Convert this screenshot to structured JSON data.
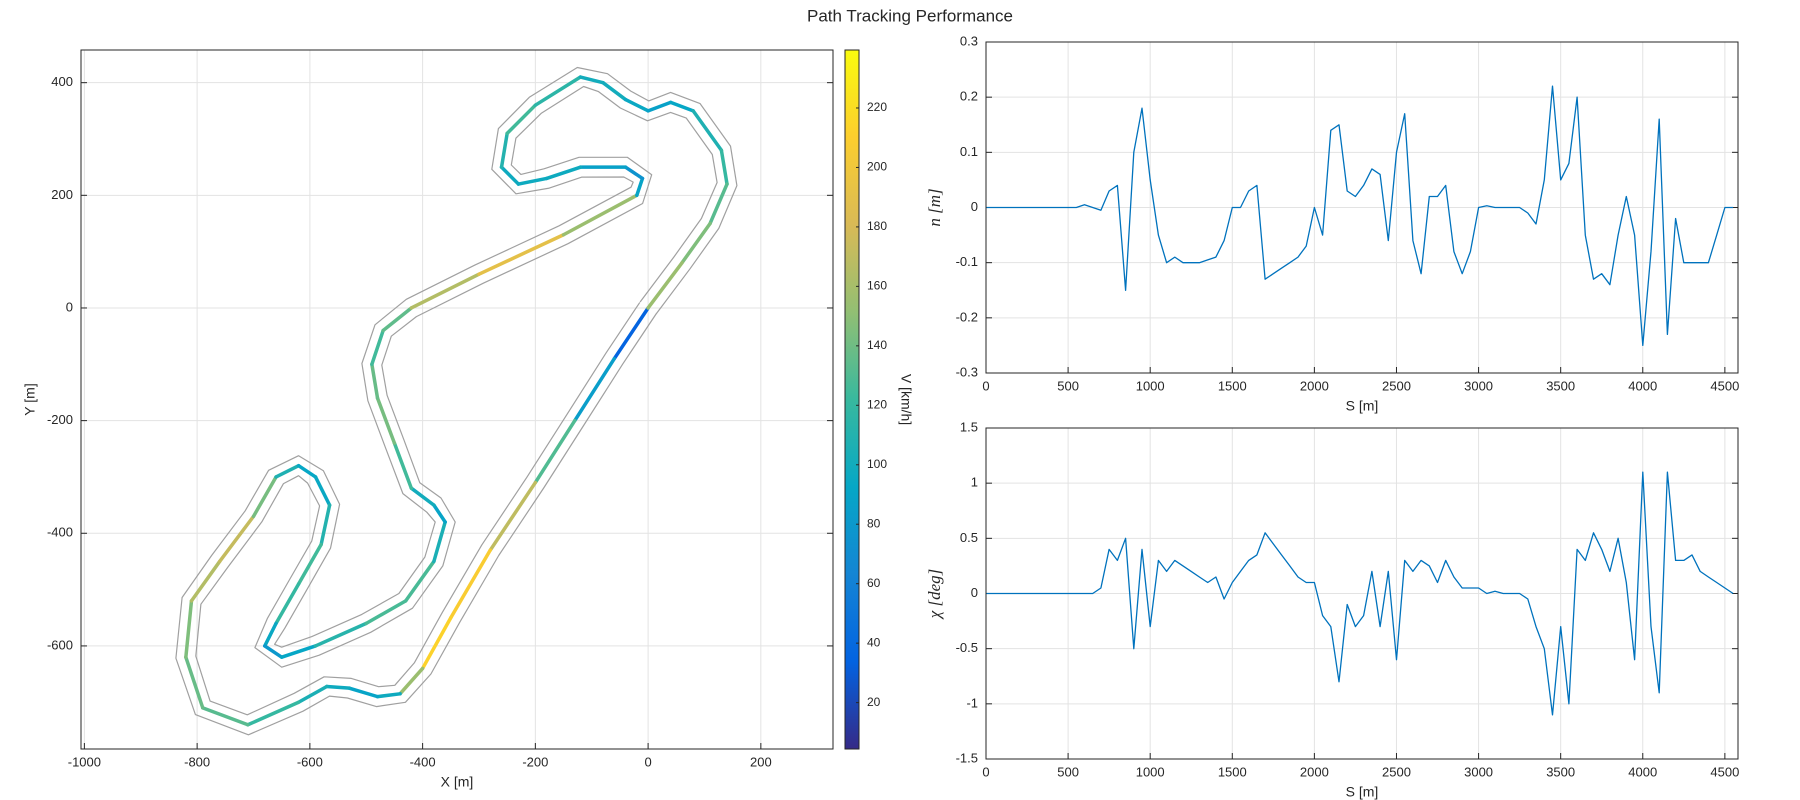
{
  "title": "Path Tracking Performance",
  "chart_data": [
    {
      "type": "track",
      "xlabel": "X [m]",
      "ylabel": "Y [m]",
      "xlim": [
        -1006,
        328
      ],
      "ylim": [
        -783,
        458
      ],
      "xticks": [
        -1000,
        -800,
        -600,
        -400,
        -200,
        0,
        200
      ],
      "yticks": [
        -600,
        -400,
        -200,
        0,
        200,
        400
      ],
      "grid": true,
      "x": [
        0,
        -60,
        -130,
        -200,
        -280,
        -350,
        -400,
        -440,
        -480,
        -530,
        -570,
        -620,
        -710,
        -790,
        -820,
        -810,
        -760,
        -700,
        -660,
        -620,
        -590,
        -565,
        -580,
        -620,
        -660,
        -680,
        -650,
        -590,
        -500,
        -430,
        -380,
        -360,
        -380,
        -420,
        -450,
        -480,
        -490,
        -470,
        -420,
        -300,
        -150,
        -20,
        -10,
        -40,
        -120,
        -180,
        -230,
        -260,
        -250,
        -200,
        -120,
        -80,
        -40,
        0,
        40,
        80,
        130,
        140,
        110,
        60,
        0
      ],
      "y": [
        0,
        -90,
        -200,
        -310,
        -430,
        -550,
        -640,
        -685,
        -690,
        -675,
        -672,
        -700,
        -740,
        -710,
        -620,
        -520,
        -450,
        -370,
        -300,
        -280,
        -300,
        -350,
        -420,
        -490,
        -560,
        -600,
        -620,
        -600,
        -560,
        -520,
        -450,
        -380,
        -350,
        -320,
        -240,
        -160,
        -100,
        -40,
        0,
        60,
        130,
        200,
        230,
        250,
        250,
        230,
        220,
        250,
        310,
        360,
        410,
        400,
        370,
        350,
        365,
        350,
        280,
        220,
        150,
        80,
        0
      ],
      "speed": [
        10,
        60,
        110,
        150,
        190,
        225,
        200,
        110,
        85,
        95,
        100,
        110,
        130,
        135,
        140,
        150,
        180,
        165,
        120,
        95,
        90,
        100,
        120,
        130,
        110,
        80,
        80,
        105,
        120,
        135,
        120,
        90,
        90,
        110,
        140,
        145,
        130,
        120,
        150,
        180,
        200,
        110,
        70,
        80,
        95,
        100,
        95,
        100,
        120,
        130,
        100,
        100,
        100,
        90,
        85,
        100,
        115,
        125,
        140,
        150,
        160
      ],
      "colorbar_label": "V [km/h]",
      "clim": [
        4.4,
        239.5
      ],
      "cticks": [
        20,
        40,
        60,
        80,
        100,
        120,
        140,
        160,
        180,
        200,
        220
      ],
      "colormap": [
        "#352a87",
        "#0363e1",
        "#1485d4",
        "#06a7c6",
        "#38b99e",
        "#92bf73",
        "#d9ba56",
        "#fcce2e",
        "#f9fb0e"
      ],
      "boundary_color": "#a0a0a0"
    },
    {
      "type": "line",
      "xlabel": "S [m]",
      "ylabel": "n [m]",
      "color": "#0072bd",
      "xlim": [
        0,
        4580
      ],
      "ylim": [
        -0.3,
        0.3
      ],
      "xticks": [
        0,
        500,
        1000,
        1500,
        2000,
        2500,
        3000,
        3500,
        4000,
        4500
      ],
      "yticks": [
        -0.3,
        -0.2,
        -0.1,
        0,
        0.1,
        0.2,
        0.3
      ],
      "grid": true,
      "x": [
        0,
        50,
        100,
        150,
        200,
        250,
        300,
        350,
        400,
        450,
        500,
        550,
        600,
        650,
        700,
        750,
        800,
        850,
        900,
        950,
        1000,
        1050,
        1100,
        1150,
        1200,
        1250,
        1300,
        1350,
        1400,
        1450,
        1500,
        1550,
        1600,
        1650,
        1700,
        1750,
        1800,
        1850,
        1900,
        1950,
        2000,
        2050,
        2100,
        2150,
        2200,
        2250,
        2300,
        2350,
        2400,
        2450,
        2500,
        2550,
        2600,
        2650,
        2700,
        2750,
        2800,
        2850,
        2900,
        2950,
        3000,
        3050,
        3100,
        3150,
        3200,
        3250,
        3300,
        3350,
        3400,
        3450,
        3500,
        3550,
        3600,
        3650,
        3700,
        3750,
        3800,
        3850,
        3900,
        3950,
        4000,
        4050,
        4100,
        4150,
        4200,
        4250,
        4300,
        4350,
        4400,
        4450,
        4500,
        4550
      ],
      "values": [
        0,
        0,
        0,
        0,
        0,
        0,
        0,
        0,
        0,
        0,
        0,
        0,
        0.005,
        0,
        -0.005,
        0.03,
        0.04,
        -0.15,
        0.1,
        0.18,
        0.05,
        -0.05,
        -0.1,
        -0.09,
        -0.1,
        -0.1,
        -0.1,
        -0.095,
        -0.09,
        -0.06,
        0,
        0,
        0.03,
        0.04,
        -0.13,
        -0.12,
        -0.11,
        -0.1,
        -0.09,
        -0.07,
        0,
        -0.05,
        0.14,
        0.15,
        0.03,
        0.02,
        0.04,
        0.07,
        0.06,
        -0.06,
        0.1,
        0.17,
        -0.06,
        -0.12,
        0.02,
        0.02,
        0.04,
        -0.08,
        -0.12,
        -0.08,
        0,
        0.003,
        0,
        0,
        0,
        0,
        -0.01,
        -0.03,
        0.05,
        0.22,
        0.05,
        0.08,
        0.2,
        -0.05,
        -0.13,
        -0.12,
        -0.14,
        -0.05,
        0.02,
        -0.05,
        -0.25,
        -0.08,
        0.16,
        -0.23,
        -0.02,
        -0.1,
        -0.1,
        -0.1,
        -0.1,
        -0.05,
        0,
        0
      ]
    },
    {
      "type": "line",
      "xlabel": "S [m]",
      "ylabel": "χ [deg]",
      "color": "#0072bd",
      "xlim": [
        0,
        4580
      ],
      "ylim": [
        -1.5,
        1.5
      ],
      "xticks": [
        0,
        500,
        1000,
        1500,
        2000,
        2500,
        3000,
        3500,
        4000,
        4500
      ],
      "yticks": [
        -1.5,
        -1,
        -0.5,
        0,
        0.5,
        1,
        1.5
      ],
      "grid": true,
      "x": [
        0,
        50,
        100,
        150,
        200,
        250,
        300,
        350,
        400,
        450,
        500,
        550,
        600,
        650,
        700,
        750,
        800,
        850,
        900,
        950,
        1000,
        1050,
        1100,
        1150,
        1200,
        1250,
        1300,
        1350,
        1400,
        1450,
        1500,
        1550,
        1600,
        1650,
        1700,
        1750,
        1800,
        1850,
        1900,
        1950,
        2000,
        2050,
        2100,
        2150,
        2200,
        2250,
        2300,
        2350,
        2400,
        2450,
        2500,
        2550,
        2600,
        2650,
        2700,
        2750,
        2800,
        2850,
        2900,
        2950,
        3000,
        3050,
        3100,
        3150,
        3200,
        3250,
        3300,
        3350,
        3400,
        3450,
        3500,
        3550,
        3600,
        3650,
        3700,
        3750,
        3800,
        3850,
        3900,
        3950,
        4000,
        4050,
        4100,
        4150,
        4200,
        4250,
        4300,
        4350,
        4400,
        4450,
        4500,
        4550
      ],
      "values": [
        0,
        0,
        0,
        0,
        0,
        0,
        0,
        0,
        0,
        0,
        0,
        0,
        0,
        0,
        0.05,
        0.4,
        0.3,
        0.5,
        -0.5,
        0.4,
        -0.3,
        0.3,
        0.2,
        0.3,
        0.25,
        0.2,
        0.15,
        0.1,
        0.15,
        -0.05,
        0.1,
        0.2,
        0.3,
        0.35,
        0.55,
        0.45,
        0.35,
        0.25,
        0.15,
        0.1,
        0.1,
        -0.2,
        -0.3,
        -0.8,
        -0.1,
        -0.3,
        -0.2,
        0.2,
        -0.3,
        0.2,
        -0.6,
        0.3,
        0.2,
        0.3,
        0.25,
        0.1,
        0.3,
        0.15,
        0.05,
        0.05,
        0.05,
        0,
        0.02,
        0,
        0,
        0,
        -0.05,
        -0.3,
        -0.5,
        -1.1,
        -0.3,
        -1,
        0.4,
        0.3,
        0.55,
        0.4,
        0.2,
        0.5,
        0.1,
        -0.6,
        1.1,
        -0.3,
        -0.9,
        1.1,
        0.3,
        0.3,
        0.35,
        0.2,
        0.15,
        0.1,
        0.05,
        0
      ]
    }
  ]
}
